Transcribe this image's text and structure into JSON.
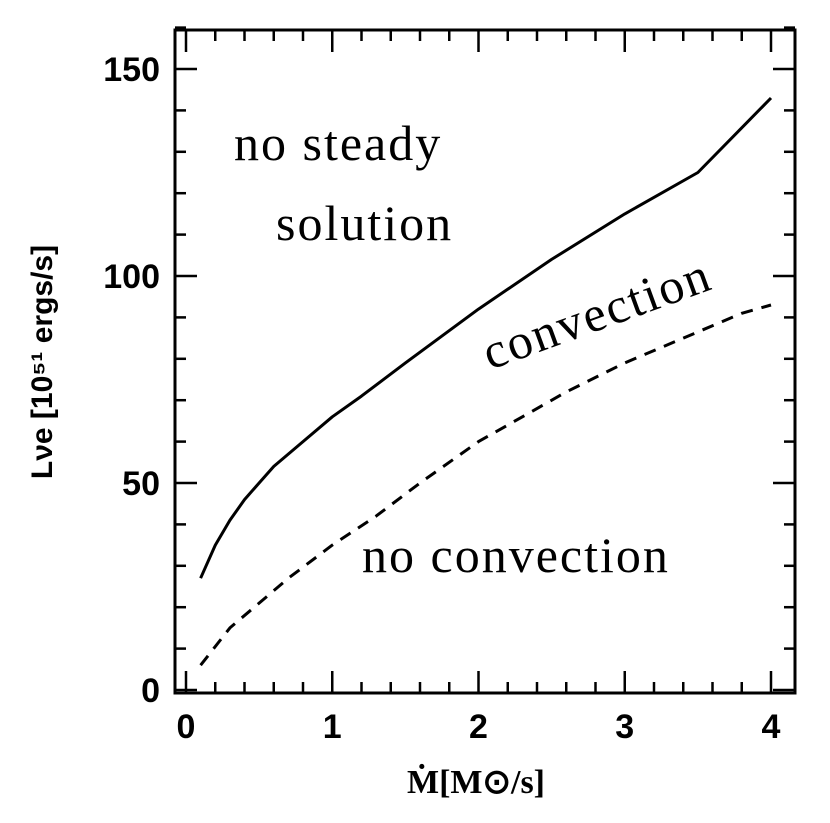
{
  "chart_data": {
    "type": "line",
    "xlabel": "Ṁ[M⊙/s]",
    "ylabel": "Lνe [10⁵¹ ergs/s]",
    "xlim": [
      -0.1,
      4.2
    ],
    "ylim": [
      0,
      160
    ],
    "xticks": [
      0,
      1,
      2,
      3,
      4
    ],
    "yticks": [
      0,
      50,
      100,
      150
    ],
    "grid": false,
    "series": [
      {
        "style": "solid",
        "x": [
          0.1,
          0.2,
          0.3,
          0.4,
          0.5,
          0.6,
          0.8,
          1.0,
          1.2,
          1.5,
          2.0,
          2.5,
          3.0,
          3.5,
          4.0
        ],
        "y": [
          27,
          35,
          41,
          46,
          50,
          54,
          60,
          66,
          71,
          79,
          92,
          104,
          115,
          125,
          143
        ]
      },
      {
        "style": "dashed",
        "x": [
          0.1,
          0.3,
          0.5,
          0.7,
          1.0,
          1.3,
          1.6,
          2.0,
          2.3,
          2.6,
          3.0,
          3.4,
          3.8,
          4.0
        ],
        "y": [
          6,
          15,
          21,
          27,
          35,
          42,
          50,
          60,
          66,
          72,
          79,
          85,
          91,
          93
        ]
      }
    ],
    "annotations": {
      "no_steady_1": "no steady",
      "no_steady_2": "solution",
      "convection": "convection",
      "no_convection": "no convection"
    }
  }
}
